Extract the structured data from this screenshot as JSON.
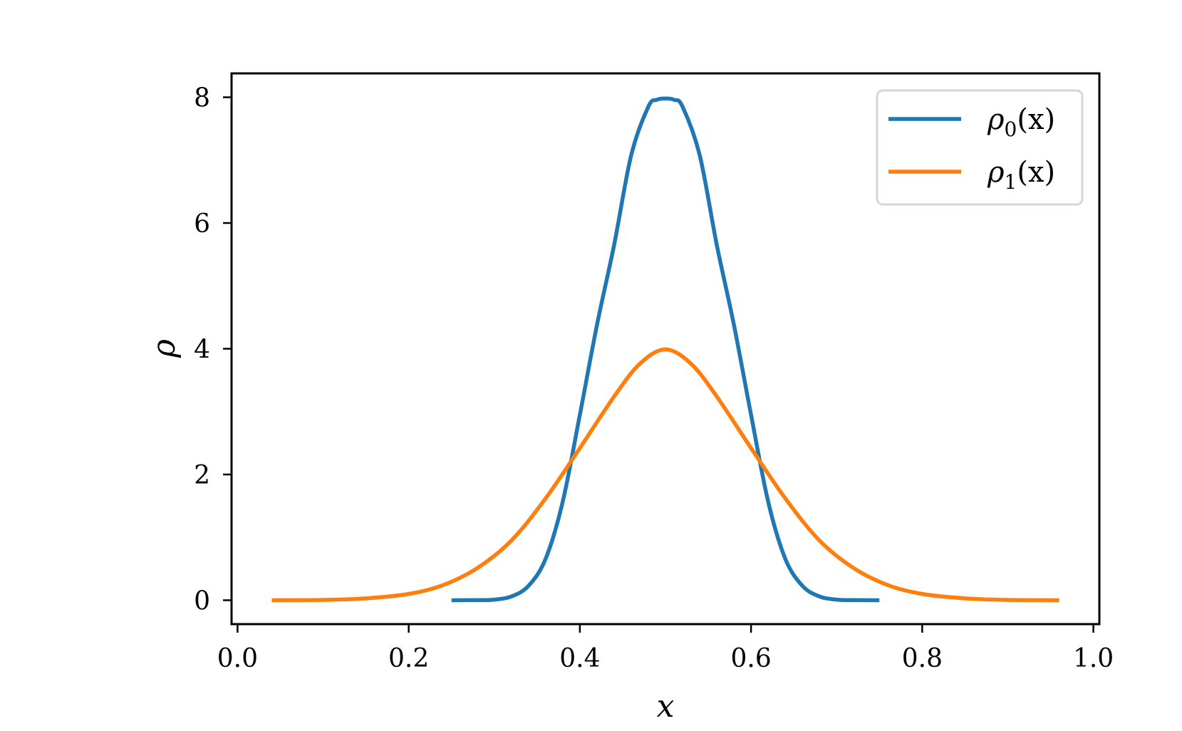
{
  "chart_data": {
    "type": "line",
    "xlabel": "x",
    "ylabel": "ρ",
    "xlim": [
      -0.007,
      1.007
    ],
    "ylim": [
      -0.38,
      8.38
    ],
    "xticks": [
      0.0,
      0.2,
      0.4,
      0.6,
      0.8,
      1.0
    ],
    "xtick_labels": [
      "0.0",
      "0.2",
      "0.4",
      "0.6",
      "0.8",
      "1.0"
    ],
    "yticks": [
      0,
      2,
      4,
      6,
      8
    ],
    "ytick_labels": [
      "0",
      "2",
      "4",
      "6",
      "8"
    ],
    "grid": false,
    "legend_position": "top-right",
    "series": [
      {
        "name": "ρ0(x)",
        "legend_parts": {
          "base": "ρ",
          "sub": "0",
          "arg": "(x)"
        },
        "color": "#1f77b4",
        "x": [
          0.25,
          0.28,
          0.3,
          0.32,
          0.34,
          0.36,
          0.38,
          0.4,
          0.42,
          0.44,
          0.46,
          0.48,
          0.49,
          0.5,
          0.51,
          0.52,
          0.54,
          0.56,
          0.58,
          0.6,
          0.62,
          0.64,
          0.66,
          0.68,
          0.7,
          0.72,
          0.75
        ],
        "y": [
          0.0,
          0.002,
          0.01,
          0.06,
          0.23,
          0.66,
          1.57,
          2.95,
          4.38,
          5.65,
          7.08,
          7.85,
          7.96,
          7.98,
          7.96,
          7.85,
          7.08,
          5.65,
          4.38,
          2.95,
          1.57,
          0.66,
          0.23,
          0.06,
          0.01,
          0.002,
          0.0
        ]
      },
      {
        "name": "ρ1(x)",
        "legend_parts": {
          "base": "ρ",
          "sub": "1",
          "arg": "(x)"
        },
        "color": "#ff7f0e",
        "x": [
          0.04,
          0.1,
          0.15,
          0.2,
          0.24,
          0.28,
          0.32,
          0.36,
          0.4,
          0.44,
          0.47,
          0.5,
          0.53,
          0.56,
          0.6,
          0.64,
          0.68,
          0.72,
          0.76,
          0.8,
          0.85,
          0.9,
          0.96
        ],
        "y": [
          0.0,
          0.005,
          0.03,
          0.1,
          0.24,
          0.51,
          0.95,
          1.62,
          2.42,
          3.24,
          3.76,
          3.99,
          3.76,
          3.24,
          2.42,
          1.62,
          0.95,
          0.51,
          0.24,
          0.1,
          0.03,
          0.005,
          0.0
        ]
      }
    ]
  }
}
